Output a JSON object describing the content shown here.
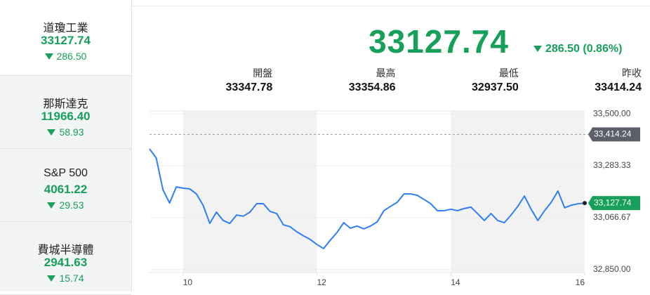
{
  "sidebar": [
    {
      "name": "道瓊工業",
      "value": "33127.74",
      "change": "286.50"
    },
    {
      "name": "那斯達克",
      "value": "11966.40",
      "change": "58.93"
    },
    {
      "name": "S&P 500",
      "value": "4061.22",
      "change": "29.53"
    },
    {
      "name": "費城半導體",
      "value": "2941.63",
      "change": "15.74"
    }
  ],
  "header": {
    "price": "33127.74",
    "change": "286.50 (0.86%)"
  },
  "stats": [
    {
      "label": "開盤",
      "value": "33347.78"
    },
    {
      "label": "最高",
      "value": "33354.86"
    },
    {
      "label": "最低",
      "value": "32937.50"
    },
    {
      "label": "昨收",
      "value": "33414.24"
    }
  ],
  "chart_data": {
    "type": "line",
    "x": [
      9.5,
      9.6,
      9.7,
      9.8,
      9.9,
      10.0,
      10.1,
      10.2,
      10.3,
      10.4,
      10.5,
      10.6,
      10.7,
      10.8,
      10.9,
      11.0,
      11.1,
      11.2,
      11.3,
      11.4,
      11.5,
      11.6,
      11.7,
      11.8,
      11.9,
      12.0,
      12.1,
      12.2,
      12.3,
      12.4,
      12.5,
      12.6,
      12.7,
      12.8,
      12.9,
      13.0,
      13.1,
      13.2,
      13.3,
      13.4,
      13.5,
      13.6,
      13.7,
      13.8,
      13.9,
      14.0,
      14.1,
      14.2,
      14.3,
      14.4,
      14.5,
      14.6,
      14.7,
      14.8,
      14.9,
      15.0,
      15.1,
      15.2,
      15.3,
      15.4,
      15.5,
      15.6,
      15.7,
      15.8,
      15.9,
      16.0
    ],
    "series": [
      {
        "color": "#2f7ef5",
        "values": [
          33354,
          33316,
          33184,
          33128,
          33195,
          33190,
          33187,
          33166,
          33119,
          33043,
          33090,
          33055,
          33043,
          33078,
          33073,
          33090,
          33125,
          33125,
          33093,
          33084,
          33037,
          33029,
          33008,
          32991,
          32976,
          32955,
          32938,
          32973,
          33005,
          33046,
          33023,
          33032,
          33020,
          33032,
          33049,
          33096,
          33114,
          33131,
          33166,
          33166,
          33160,
          33143,
          33125,
          33096,
          33096,
          33102,
          33096,
          33105,
          33111,
          33084,
          33055,
          33084,
          33055,
          33046,
          33078,
          33114,
          33157,
          33102,
          33055,
          33096,
          33131,
          33178,
          33108,
          33119,
          33125,
          33127.74
        ]
      }
    ],
    "xlim": [
      9.5,
      16
    ],
    "xticks": [
      10,
      12,
      14,
      16
    ],
    "ylim": [
      32838,
      33512
    ],
    "yticks": [
      {
        "value": 33500,
        "label": "33,500.00"
      },
      {
        "value": 33283.33,
        "label": "33,283.33"
      },
      {
        "value": 33066.67,
        "label": "33,066.67"
      },
      {
        "value": 32850,
        "label": "32,850.00"
      }
    ],
    "previous_close": {
      "value": 33414.24,
      "label": "33,414.24"
    },
    "last_label": "33,127.74",
    "grid": true
  }
}
